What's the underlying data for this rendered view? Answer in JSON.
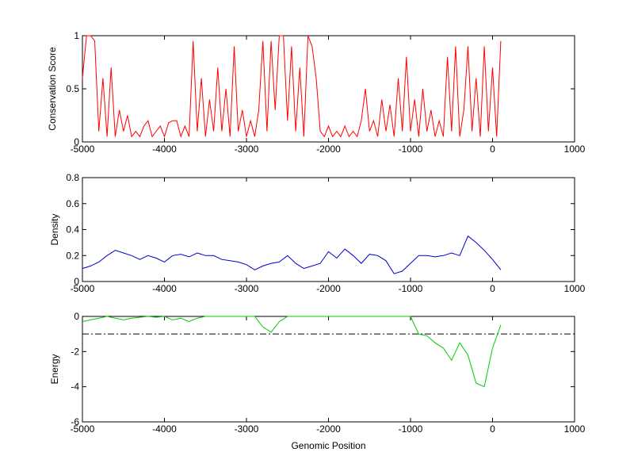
{
  "chart_data": [
    {
      "type": "line",
      "ylabel": "Conservation Score",
      "xlim": [
        -5000,
        1000
      ],
      "xticks": [
        -5000,
        -4000,
        -3000,
        -2000,
        -1000,
        0,
        1000
      ],
      "ylim": [
        0,
        1
      ],
      "yticks": [
        0,
        0.5,
        1
      ],
      "x": [
        -5000,
        -4950,
        -4900,
        -4850,
        -4800,
        -4750,
        -4700,
        -4650,
        -4600,
        -4550,
        -4500,
        -4450,
        -4400,
        -4350,
        -4300,
        -4250,
        -4200,
        -4150,
        -4100,
        -4050,
        -4000,
        -3950,
        -3900,
        -3850,
        -3800,
        -3750,
        -3700,
        -3650,
        -3600,
        -3550,
        -3500,
        -3450,
        -3400,
        -3350,
        -3300,
        -3250,
        -3200,
        -3150,
        -3100,
        -3050,
        -3000,
        -2950,
        -2900,
        -2850,
        -2800,
        -2750,
        -2700,
        -2650,
        -2600,
        -2550,
        -2500,
        -2450,
        -2400,
        -2350,
        -2300,
        -2250,
        -2200,
        -2150,
        -2100,
        -2050,
        -2000,
        -1950,
        -1900,
        -1850,
        -1800,
        -1750,
        -1700,
        -1650,
        -1600,
        -1550,
        -1500,
        -1450,
        -1400,
        -1350,
        -1300,
        -1250,
        -1200,
        -1150,
        -1100,
        -1050,
        -1000,
        -950,
        -900,
        -850,
        -800,
        -750,
        -700,
        -650,
        -600,
        -550,
        -500,
        -450,
        -400,
        -350,
        -300,
        -250,
        -200,
        -150,
        -100,
        -50,
        0,
        50,
        100
      ],
      "series": [
        {
          "color": "#ff0000",
          "values": [
            0.6,
            1,
            1,
            0.95,
            0.1,
            0.6,
            0.05,
            0.7,
            0.05,
            0.3,
            0.1,
            0.25,
            0.05,
            0.1,
            0.05,
            0.15,
            0.2,
            0.05,
            0.1,
            0.15,
            0.05,
            0.18,
            0.2,
            0.2,
            0.05,
            0.15,
            0.05,
            0.95,
            0.1,
            0.6,
            0.05,
            0.4,
            0.1,
            0.7,
            0.1,
            0.5,
            0.05,
            0.9,
            0.1,
            0.3,
            0.05,
            0.2,
            0.05,
            0.3,
            0.95,
            0.1,
            0.95,
            0.3,
            1,
            1,
            0.2,
            0.9,
            0.1,
            0.7,
            0.05,
            1,
            0.9,
            0.6,
            0.1,
            0.05,
            0.15,
            0.05,
            0.1,
            0.05,
            0.15,
            0.05,
            0.1,
            0.05,
            0.2,
            0.5,
            0.1,
            0.2,
            0.05,
            0.4,
            0.1,
            0.35,
            0.05,
            0.6,
            0.1,
            0.8,
            0.1,
            0.4,
            0.05,
            0.5,
            0.1,
            0.3,
            0.05,
            0.2,
            0.05,
            0.8,
            0.1,
            0.9,
            0.05,
            0.3,
            0.9,
            0.1,
            0.6,
            0.05,
            0.9,
            0.1,
            0.7,
            0.05,
            0.95
          ]
        }
      ]
    },
    {
      "type": "line",
      "ylabel": "Density",
      "xlim": [
        -5000,
        1000
      ],
      "xticks": [
        -5000,
        -4000,
        -3000,
        -2000,
        -1000,
        0,
        1000
      ],
      "ylim": [
        0,
        0.8
      ],
      "yticks": [
        0,
        0.2,
        0.4,
        0.6,
        0.8
      ],
      "x": [
        -5000,
        -4900,
        -4800,
        -4700,
        -4600,
        -4500,
        -4400,
        -4300,
        -4200,
        -4100,
        -4000,
        -3900,
        -3800,
        -3700,
        -3600,
        -3500,
        -3400,
        -3300,
        -3200,
        -3100,
        -3000,
        -2900,
        -2800,
        -2700,
        -2600,
        -2500,
        -2400,
        -2300,
        -2200,
        -2100,
        -2000,
        -1900,
        -1800,
        -1700,
        -1600,
        -1500,
        -1400,
        -1300,
        -1200,
        -1100,
        -1000,
        -900,
        -800,
        -700,
        -600,
        -500,
        -400,
        -300,
        -200,
        -100,
        0,
        100
      ],
      "series": [
        {
          "color": "#0000cc",
          "values": [
            0.1,
            0.12,
            0.15,
            0.2,
            0.24,
            0.22,
            0.2,
            0.17,
            0.2,
            0.18,
            0.15,
            0.2,
            0.21,
            0.19,
            0.22,
            0.2,
            0.2,
            0.17,
            0.16,
            0.15,
            0.13,
            0.09,
            0.12,
            0.14,
            0.15,
            0.2,
            0.14,
            0.1,
            0.12,
            0.14,
            0.23,
            0.18,
            0.25,
            0.2,
            0.14,
            0.21,
            0.2,
            0.16,
            0.06,
            0.08,
            0.14,
            0.2,
            0.2,
            0.19,
            0.2,
            0.22,
            0.2,
            0.35,
            0.3,
            0.24,
            0.17,
            0.09
          ]
        }
      ]
    },
    {
      "type": "line",
      "ylabel": "Energy",
      "xlabel": "Genomic Position",
      "xlim": [
        -5000,
        1000
      ],
      "xticks": [
        -5000,
        -4000,
        -3000,
        -2000,
        -1000,
        0,
        1000
      ],
      "ylim": [
        -6,
        0
      ],
      "yticks": [
        -6,
        -4,
        -2,
        0
      ],
      "reference_line": -1,
      "x": [
        -5000,
        -4900,
        -4800,
        -4700,
        -4600,
        -4500,
        -4400,
        -4300,
        -4200,
        -4100,
        -4000,
        -3900,
        -3800,
        -3700,
        -3600,
        -3500,
        -3400,
        -3300,
        -3200,
        -3100,
        -3000,
        -2900,
        -2800,
        -2700,
        -2600,
        -2500,
        -2400,
        -2300,
        -2200,
        -2100,
        -2000,
        -1900,
        -1800,
        -1700,
        -1600,
        -1500,
        -1400,
        -1300,
        -1200,
        -1100,
        -1000,
        -900,
        -800,
        -700,
        -600,
        -500,
        -400,
        -300,
        -200,
        -100,
        0,
        100
      ],
      "series": [
        {
          "color": "#00cc00",
          "values": [
            -0.3,
            -0.2,
            -0.1,
            0,
            -0.1,
            -0.2,
            -0.1,
            -0.05,
            0,
            -0.05,
            0,
            -0.2,
            -0.1,
            -0.3,
            -0.1,
            0,
            0,
            0,
            0,
            0,
            0,
            0,
            -0.6,
            -0.9,
            -0.3,
            0,
            0,
            0,
            0,
            0,
            0,
            0,
            0,
            0,
            0,
            0,
            0,
            0,
            0,
            0,
            0,
            -1,
            -1.1,
            -1.5,
            -1.8,
            -2.5,
            -1.5,
            -2.2,
            -3.8,
            -4,
            -1.8,
            -0.5
          ]
        }
      ]
    }
  ]
}
